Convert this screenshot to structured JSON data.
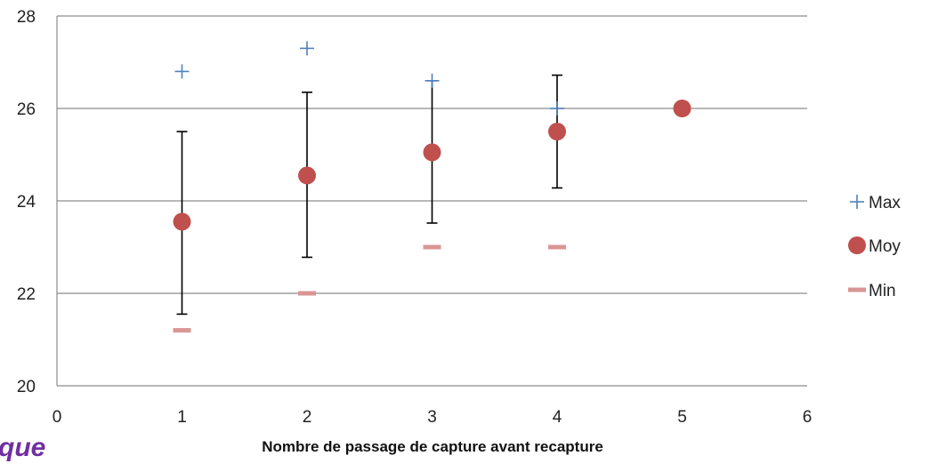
{
  "chart_data": {
    "type": "scatter",
    "title": "",
    "xlabel": "Nombre de passage de capture avant recapture",
    "ylabel": "",
    "xlim": [
      0,
      6
    ],
    "ylim": [
      20,
      28
    ],
    "x_ticks": [
      "0",
      "1",
      "2",
      "3",
      "4",
      "5",
      "6"
    ],
    "y_ticks": [
      "20",
      "22",
      "24",
      "26",
      "28"
    ],
    "grid": "horizontal",
    "legend_position": "right",
    "series": [
      {
        "name": "Max",
        "marker": "plus",
        "color": "#4f81bd",
        "points": [
          {
            "x": 1,
            "y": 26.8
          },
          {
            "x": 2,
            "y": 27.3
          },
          {
            "x": 3,
            "y": 26.6
          },
          {
            "x": 4,
            "y": 26.0
          }
        ]
      },
      {
        "name": "Moy",
        "marker": "circle",
        "color": "#c0504d",
        "points": [
          {
            "x": 1,
            "y": 23.55,
            "err_low": 21.55,
            "err_high": 25.5
          },
          {
            "x": 2,
            "y": 24.55,
            "err_low": 22.78,
            "err_high": 26.35
          },
          {
            "x": 3,
            "y": 25.05,
            "err_low": 23.52,
            "err_high": 26.6
          },
          {
            "x": 4,
            "y": 25.5,
            "err_low": 24.28,
            "err_high": 26.72
          },
          {
            "x": 5,
            "y": 26.0
          }
        ]
      },
      {
        "name": "Min",
        "marker": "dash",
        "color": "#d99694",
        "points": [
          {
            "x": 1,
            "y": 21.2
          },
          {
            "x": 2,
            "y": 22.0
          },
          {
            "x": 3,
            "y": 23.0
          },
          {
            "x": 4,
            "y": 23.0
          }
        ]
      }
    ]
  },
  "fragment_text": "que",
  "colors": {
    "grid": "#8c8c8c",
    "errorbar": "#000000",
    "fragment": "#7030a0"
  }
}
